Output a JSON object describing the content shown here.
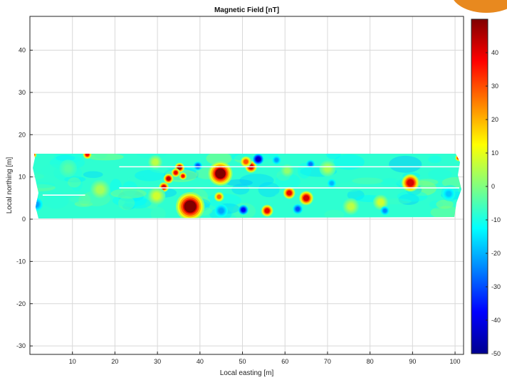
{
  "colors": {
    "badge": "#e8891f",
    "colormap": [
      "#00008f",
      "#0000ff",
      "#0080ff",
      "#00ffff",
      "#80ff80",
      "#ffff00",
      "#ff8000",
      "#ff0000",
      "#800000"
    ],
    "survey_base": "#5fd8c8"
  },
  "chart_data": {
    "type": "heatmap",
    "title": "Magnetic Field [nT]",
    "xlabel": "Local easting [m]",
    "ylabel": "Local northing [m]",
    "xlim": [
      0,
      102
    ],
    "ylim": [
      -32,
      48
    ],
    "xticks": [
      10,
      20,
      30,
      40,
      50,
      60,
      70,
      80,
      90,
      100
    ],
    "yticks": [
      -30,
      -20,
      -10,
      0,
      10,
      20,
      30,
      40
    ],
    "grid": true,
    "colorbar": {
      "clim": [
        -50,
        50
      ],
      "ticks": [
        -50,
        -40,
        -30,
        -20,
        -10,
        0,
        10,
        20,
        30,
        40
      ],
      "placement": "right"
    },
    "survey_strip": {
      "x_range": [
        0,
        101
      ],
      "y_range": [
        0.5,
        15.5
      ],
      "background_value": -8
    },
    "anomalies": [
      {
        "x": 37.7,
        "y": 3.0,
        "radius": 2.6,
        "peak": 50
      },
      {
        "x": 44.8,
        "y": 10.8,
        "radius": 2.2,
        "peak": 48
      },
      {
        "x": 89.5,
        "y": 8.6,
        "radius": 1.6,
        "peak": 42
      },
      {
        "x": 35.2,
        "y": 12.2,
        "radius": 0.9,
        "peak": 45
      },
      {
        "x": 34.3,
        "y": 11.0,
        "radius": 0.8,
        "peak": 40
      },
      {
        "x": 32.6,
        "y": 9.6,
        "radius": 0.9,
        "peak": 44
      },
      {
        "x": 31.5,
        "y": 7.6,
        "radius": 0.9,
        "peak": 42
      },
      {
        "x": 36.0,
        "y": 10.2,
        "radius": 0.7,
        "peak": 38
      },
      {
        "x": 52.0,
        "y": 12.4,
        "radius": 1.1,
        "peak": 42
      },
      {
        "x": 50.8,
        "y": 13.6,
        "radius": 1.0,
        "peak": 30
      },
      {
        "x": 61.0,
        "y": 6.2,
        "radius": 1.1,
        "peak": 40
      },
      {
        "x": 65.0,
        "y": 5.0,
        "radius": 1.3,
        "peak": 42
      },
      {
        "x": 55.8,
        "y": 2.0,
        "radius": 1.1,
        "peak": 40
      },
      {
        "x": 44.5,
        "y": 5.3,
        "radius": 0.9,
        "peak": 28
      },
      {
        "x": 13.5,
        "y": 15.3,
        "radius": 0.8,
        "peak": 38
      },
      {
        "x": 0.8,
        "y": 15.2,
        "radius": 0.6,
        "peak": 36
      },
      {
        "x": 100.8,
        "y": 14.5,
        "radius": 0.6,
        "peak": 34
      },
      {
        "x": 82.5,
        "y": 4.0,
        "radius": 1.4,
        "peak": 8
      },
      {
        "x": 75.5,
        "y": 3.0,
        "radius": 1.5,
        "peak": 6
      },
      {
        "x": 29.8,
        "y": 5.5,
        "radius": 1.6,
        "peak": 8
      },
      {
        "x": 29.5,
        "y": 13.5,
        "radius": 1.3,
        "peak": 6
      },
      {
        "x": 16.5,
        "y": 7.0,
        "radius": 1.8,
        "peak": 4
      },
      {
        "x": 70.0,
        "y": 12.0,
        "radius": 1.5,
        "peak": 4
      },
      {
        "x": 60.5,
        "y": 11.5,
        "radius": 1.2,
        "peak": 2
      },
      {
        "x": 53.7,
        "y": 14.2,
        "radius": 1.0,
        "peak": -45
      },
      {
        "x": 50.2,
        "y": 2.2,
        "radius": 0.9,
        "peak": -38
      },
      {
        "x": 63.0,
        "y": 2.4,
        "radius": 0.9,
        "peak": -30
      },
      {
        "x": 39.5,
        "y": 12.6,
        "radius": 0.8,
        "peak": -30
      },
      {
        "x": 66.0,
        "y": 13.0,
        "radius": 0.8,
        "peak": -26
      },
      {
        "x": 83.5,
        "y": 2.0,
        "radius": 0.8,
        "peak": -24
      },
      {
        "x": 58.0,
        "y": 14.0,
        "radius": 0.8,
        "peak": -22
      },
      {
        "x": 71.0,
        "y": 8.5,
        "radius": 0.8,
        "peak": -20
      },
      {
        "x": 1.5,
        "y": 3.5,
        "radius": 1.2,
        "peak": -22
      },
      {
        "x": 98.5,
        "y": 6.0,
        "radius": 1.2,
        "peak": -18
      },
      {
        "x": 9.0,
        "y": 12.0,
        "radius": 1.6,
        "peak": -4
      },
      {
        "x": 45.0,
        "y": 2.0,
        "radius": 1.2,
        "peak": -22
      }
    ],
    "gap_lines": [
      {
        "x": [
          21,
          101
        ],
        "y": 12.4
      },
      {
        "x": 21,
        "x_end": 101,
        "y": 7.4
      },
      {
        "x": 3,
        "x_end": 13,
        "y": 5.7
      }
    ]
  }
}
